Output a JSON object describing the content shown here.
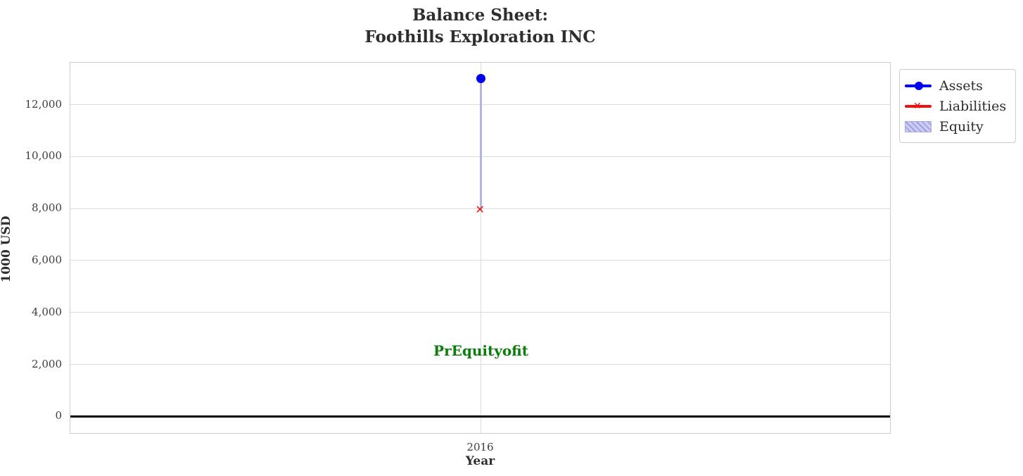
{
  "title": {
    "line1": "Balance Sheet:",
    "line2": "Foothills Exploration INC"
  },
  "chart_data": {
    "type": "scatter",
    "x": [
      2016
    ],
    "xlim": [
      2015.5,
      2016.5
    ],
    "ylim": [
      -696,
      13613
    ],
    "grid": true,
    "zero_line_y": 0,
    "xlabel": "Year",
    "ylabel": "1000 USD",
    "xticks": [
      {
        "value": 2016,
        "label": "2016"
      }
    ],
    "yticks": [
      {
        "value": 0,
        "label": "0"
      },
      {
        "value": 2000,
        "label": "2,000"
      },
      {
        "value": 4000,
        "label": "4,000"
      },
      {
        "value": 6000,
        "label": "6,000"
      },
      {
        "value": 8000,
        "label": "8,000"
      },
      {
        "value": 10000,
        "label": "10,000"
      },
      {
        "value": 12000,
        "label": "12,000"
      }
    ],
    "series": [
      {
        "name": "Assets",
        "x": [
          2016
        ],
        "values": [
          13000
        ],
        "color": "#0000ee",
        "marker": "circle"
      },
      {
        "name": "Liabilities",
        "x": [
          2016
        ],
        "values": [
          7950
        ],
        "color": "#ee1111",
        "marker": "x"
      },
      {
        "name": "Equity",
        "x": [
          2016
        ],
        "values": [
          5050
        ],
        "color": "#b4b4e0",
        "style": "hatched-band",
        "band_low": 7950,
        "band_high": 13000
      }
    ],
    "annotation": {
      "text": "PrEquityofit",
      "x": 2016,
      "y": 2500,
      "color": "#0a7d0a"
    },
    "legend_position": "outside-right"
  },
  "legend": {
    "items": [
      {
        "label": "Assets",
        "swatch": "line-circle",
        "color": "#0000ee"
      },
      {
        "label": "Liabilities",
        "swatch": "line-x",
        "color": "#ee1111"
      },
      {
        "label": "Equity",
        "swatch": "hatched-patch",
        "fill": "#ccccf2",
        "hatch": "#9999dd"
      }
    ]
  },
  "colors": {
    "assets": "#0000ee",
    "liabilities": "#ee1111",
    "equity_fill": "#b4b4e0",
    "annotation_green": "#0a7d0a",
    "gridline": "#dcdcdc",
    "zero_line": "#000000"
  }
}
